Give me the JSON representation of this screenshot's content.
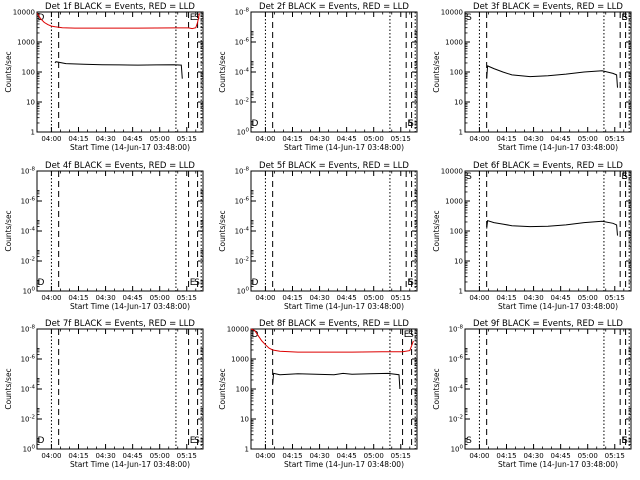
{
  "figure": {
    "x_ticks": [
      "04:00",
      "04:15",
      "04:30",
      "04:45",
      "05:00",
      "05:15"
    ],
    "x_label": "Start Time (14-Jun-17 03:48:00)",
    "y_label": "Counts/sec",
    "y_ticks_numeric": [
      "1",
      "10",
      "100",
      "1000",
      "10000"
    ],
    "y_ticks_exp": [
      "10^0",
      "10^-2",
      "10^-4",
      "10^-6",
      "10^-8"
    ],
    "line_colors": {
      "events": "#000000",
      "lld": "#dd0000"
    }
  },
  "chart_data": [
    {
      "type": "line",
      "title": "Det 1f BLACK = Events, RED = LLD",
      "y_scale": "log",
      "y_tick_style": "numeric",
      "ylim": [
        1,
        10000
      ],
      "x_unit_label": "minutes from 03:48:00",
      "xlim": [
        4,
        96
      ],
      "series": [
        {
          "name": "Events",
          "x": [
            14,
            14.5,
            20,
            30,
            40,
            50,
            60,
            70,
            80,
            84,
            84.5
          ],
          "y": [
            200,
            220,
            190,
            180,
            175,
            172,
            170,
            172,
            175,
            170,
            60
          ]
        },
        {
          "name": "LLD",
          "x": [
            4,
            6,
            8,
            10,
            12,
            14,
            18,
            25,
            40,
            60,
            80,
            88,
            90,
            92,
            93,
            94
          ],
          "y": [
            9000,
            6000,
            4500,
            3800,
            3400,
            3200,
            3000,
            2900,
            2900,
            2900,
            2950,
            2950,
            2800,
            3000,
            4500,
            9000
          ]
        }
      ],
      "markers": {
        "dotted": [
          12,
          81,
          95
        ],
        "dashed": [
          16,
          88,
          93
        ],
        "labels": [
          "D",
          "E",
          "S"
        ]
      }
    },
    {
      "type": "line",
      "title": "Det 2f BLACK = Events, RED = LLD",
      "y_scale": "log",
      "y_tick_style": "exp",
      "ylim": [
        1e-08,
        1
      ],
      "xlim": [
        4,
        96
      ],
      "series": [],
      "markers": {
        "dotted": [
          12,
          81,
          95
        ],
        "dashed": [
          16,
          90,
          93
        ],
        "labels": [
          "D",
          "E",
          "S"
        ]
      }
    },
    {
      "type": "line",
      "title": "Det 3f BLACK = Events, RED = LLD",
      "y_scale": "log",
      "y_tick_style": "numeric",
      "ylim": [
        1,
        10000
      ],
      "xlim": [
        4,
        96
      ],
      "series": [
        {
          "name": "Events",
          "x": [
            16,
            16.5,
            20,
            25,
            30,
            40,
            50,
            60,
            70,
            80,
            86,
            88,
            88.5
          ],
          "y": [
            60,
            160,
            130,
            100,
            80,
            70,
            75,
            85,
            100,
            110,
            90,
            80,
            30
          ]
        }
      ],
      "markers": {
        "dotted": [
          12,
          81,
          95
        ],
        "dashed": [
          16,
          90,
          93
        ],
        "labels": [
          "S",
          "E",
          "S"
        ]
      }
    },
    {
      "type": "line",
      "title": "Det 4f BLACK = Events, RED = LLD",
      "y_scale": "log",
      "y_tick_style": "exp",
      "ylim": [
        1e-08,
        1
      ],
      "xlim": [
        4,
        96
      ],
      "series": [],
      "markers": {
        "dotted": [
          12,
          81,
          95
        ],
        "dashed": [
          16,
          88,
          93
        ],
        "labels": [
          "D",
          "E",
          "S"
        ]
      }
    },
    {
      "type": "line",
      "title": "Det 5f BLACK = Events, RED = LLD",
      "y_scale": "log",
      "y_tick_style": "exp",
      "ylim": [
        1e-08,
        1
      ],
      "xlim": [
        4,
        96
      ],
      "series": [],
      "markers": {
        "dotted": [
          12,
          81,
          95
        ],
        "dashed": [
          16,
          90,
          93
        ],
        "labels": [
          "D",
          "E",
          "S"
        ]
      }
    },
    {
      "type": "line",
      "title": "Det 6f BLACK = Events, RED = LLD",
      "y_scale": "log",
      "y_tick_style": "numeric",
      "ylim": [
        1,
        10000
      ],
      "xlim": [
        4,
        96
      ],
      "series": [
        {
          "name": "Events",
          "x": [
            16,
            16.5,
            20,
            25,
            30,
            40,
            50,
            60,
            70,
            80,
            86,
            88,
            88.5
          ],
          "y": [
            120,
            220,
            190,
            170,
            150,
            140,
            145,
            160,
            190,
            210,
            180,
            160,
            70
          ]
        }
      ],
      "markers": {
        "dotted": [
          12,
          81,
          95
        ],
        "dashed": [
          16,
          90,
          93
        ],
        "labels": [
          "S",
          "E",
          "S"
        ]
      }
    },
    {
      "type": "line",
      "title": "Det 7f BLACK = Events, RED = LLD",
      "y_scale": "log",
      "y_tick_style": "exp",
      "ylim": [
        1e-08,
        1
      ],
      "xlim": [
        4,
        96
      ],
      "series": [],
      "markers": {
        "dotted": [
          12,
          81,
          95
        ],
        "dashed": [
          16,
          88,
          93
        ],
        "labels": [
          "D",
          "E",
          "S"
        ]
      }
    },
    {
      "type": "line",
      "title": "Det 8f BLACK = Events, RED = LLD",
      "y_scale": "log",
      "y_tick_style": "numeric",
      "ylim": [
        1,
        10000
      ],
      "xlim": [
        4,
        96
      ],
      "series": [
        {
          "name": "Events",
          "x": [
            16,
            16.5,
            20,
            30,
            40,
            50,
            55,
            60,
            70,
            80,
            86,
            86.5
          ],
          "y": [
            150,
            330,
            300,
            320,
            310,
            300,
            330,
            310,
            320,
            330,
            300,
            100
          ]
        },
        {
          "name": "LLD",
          "x": [
            4,
            6,
            8,
            10,
            12,
            14,
            16,
            20,
            30,
            40,
            60,
            80,
            88,
            92,
            94
          ],
          "y": [
            10000,
            9000,
            6000,
            4000,
            3000,
            2300,
            2000,
            1800,
            1700,
            1700,
            1700,
            1750,
            1750,
            1900,
            4000
          ]
        }
      ],
      "markers": {
        "dotted": [
          12,
          81,
          95
        ],
        "dashed": [
          16,
          88,
          93
        ],
        "labels": [
          "D",
          "E",
          "S"
        ]
      }
    },
    {
      "type": "line",
      "title": "Det 9f BLACK = Events, RED = LLD",
      "y_scale": "log",
      "y_tick_style": "exp",
      "ylim": [
        1e-08,
        1
      ],
      "xlim": [
        4,
        96
      ],
      "series": [],
      "markers": {
        "dotted": [
          12,
          81,
          95
        ],
        "dashed": [
          16,
          90,
          93
        ],
        "labels": [
          "S",
          "E",
          "S"
        ]
      }
    }
  ]
}
